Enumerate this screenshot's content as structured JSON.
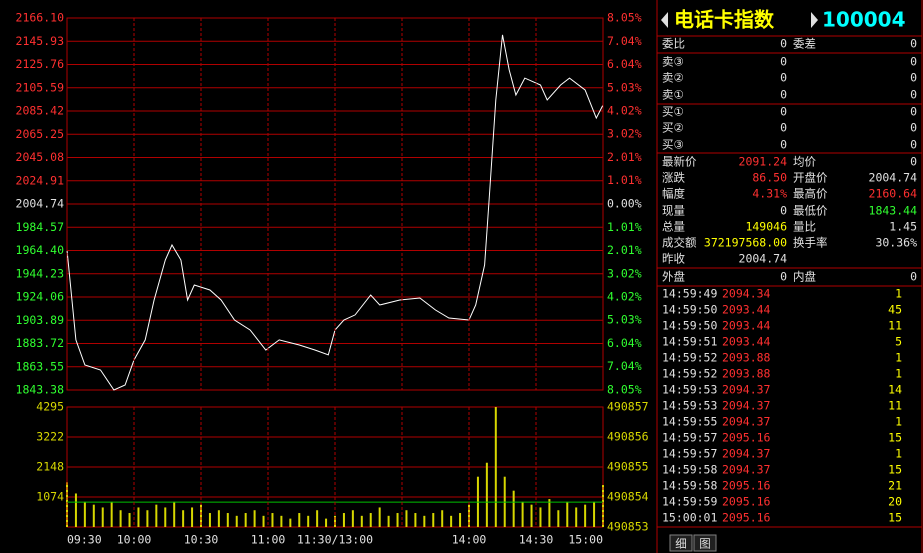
{
  "chart_data": [
    {
      "type": "line",
      "xlim": [
        0,
        240
      ],
      "ylim": [
        1843.38,
        2166.1
      ],
      "yticks": [
        {
          "value": 2166.1,
          "label": "2166.10"
        },
        2145.93,
        2125.76,
        2105.59,
        2085.42,
        2065.25,
        2045.08,
        2024.91,
        2004.74,
        1984.57,
        {
          "value": 1964.4,
          "label": "1964.40"
        },
        1944.23,
        1924.06,
        1903.89,
        1883.72,
        1863.55,
        1843.38
      ],
      "y2lim": [
        -8.05,
        8.05
      ],
      "y2ticks": [
        {
          "value": 8.05,
          "label": "8.05%"
        },
        {
          "value": 7.04,
          "label": "7.04%"
        },
        {
          "value": 6.04,
          "label": "6.04%"
        },
        {
          "value": 5.03,
          "label": "5.03%"
        },
        {
          "value": 4.02,
          "label": "4.02%"
        },
        {
          "value": 3.02,
          "label": "3.02%"
        },
        {
          "value": 2.01,
          "label": "2.01%"
        },
        {
          "value": 1.01,
          "label": "1.01%"
        },
        {
          "value": 0,
          "label": "0.00%"
        },
        {
          "value": -1.01,
          "label": "1.01%"
        },
        {
          "value": -2.01,
          "label": "2.01%"
        },
        {
          "value": -3.02,
          "label": "3.02%"
        },
        {
          "value": -4.02,
          "label": "4.02%"
        },
        {
          "value": -5.03,
          "label": "5.03%"
        },
        {
          "value": -6.04,
          "label": "6.04%"
        },
        {
          "value": -7.04,
          "label": "7.04%"
        },
        {
          "value": -8.05,
          "label": "8.05%"
        }
      ],
      "grid": true,
      "x": [
        0,
        4,
        8,
        15,
        21,
        26,
        30,
        35,
        39,
        44,
        47,
        51,
        54,
        57,
        64,
        69,
        75,
        82,
        89,
        95,
        104,
        111,
        117,
        120,
        124,
        129,
        136,
        140,
        149,
        158,
        165,
        171,
        180,
        183,
        187,
        189,
        192,
        195,
        198,
        201,
        205,
        212,
        215,
        221,
        225,
        232,
        237,
        240
      ],
      "series": [
        {
          "color": "#ffffff",
          "values": [
            1964.8,
            1886.8,
            1865.1,
            1860.7,
            1843.4,
            1847.7,
            1869.4,
            1886.8,
            1921.5,
            1956.2,
            1969.2,
            1956.2,
            1921.5,
            1934.5,
            1930.1,
            1921.5,
            1904.1,
            1895.4,
            1878.1,
            1886.8,
            1882.4,
            1878.1,
            1873.8,
            1895.4,
            1904.1,
            1908.5,
            1925.8,
            1917.1,
            1921.5,
            1923.2,
            1912.8,
            1905.8,
            1904.1,
            1917.1,
            1951.8,
            2008.2,
            2095.0,
            2151.4,
            2121.0,
            2099.3,
            2114.0,
            2108.0,
            2095.0,
            2108.0,
            2114.0,
            2103.6,
            2079.3,
            2090.6
          ]
        }
      ]
    },
    {
      "type": "bar",
      "xlim": [
        0,
        240
      ],
      "xticks": [
        {
          "value": 0,
          "label": "09:30"
        },
        {
          "value": 30,
          "label": "10:00"
        },
        {
          "value": 60,
          "label": "10:30"
        },
        {
          "value": 90,
          "label": "11:00"
        },
        {
          "value": 120,
          "label": "11:30/13:00"
        },
        {
          "value": 150,
          "label": null
        },
        {
          "value": 180,
          "label": "14:00"
        },
        {
          "value": 210,
          "label": "14:30"
        },
        {
          "value": 240,
          "label": "15:00"
        }
      ],
      "ylim": [
        0,
        4295
      ],
      "yticks": [
        4295,
        3222,
        2148,
        1074
      ],
      "y2lim": [
        490853,
        490857
      ],
      "y2ticks": [
        490857,
        490856,
        490855,
        490854,
        490853
      ],
      "grid": true,
      "x": [
        0,
        4,
        8,
        12,
        16,
        20,
        24,
        28,
        32,
        36,
        40,
        44,
        48,
        52,
        56,
        60,
        64,
        68,
        72,
        76,
        80,
        84,
        88,
        92,
        96,
        100,
        104,
        108,
        112,
        116,
        120,
        124,
        128,
        132,
        136,
        140,
        144,
        148,
        152,
        156,
        160,
        164,
        168,
        172,
        176,
        180,
        184,
        188,
        192,
        196,
        200,
        204,
        208,
        212,
        216,
        220,
        224,
        228,
        232,
        236,
        240
      ],
      "series": [
        {
          "color": "#d8d800",
          "values": [
            1600,
            1200,
            900,
            800,
            700,
            900,
            600,
            500,
            700,
            600,
            800,
            700,
            900,
            600,
            700,
            800,
            500,
            600,
            500,
            400,
            500,
            600,
            400,
            500,
            400,
            300,
            500,
            400,
            600,
            300,
            400,
            500,
            600,
            400,
            500,
            700,
            400,
            500,
            600,
            500,
            400,
            500,
            600,
            400,
            500,
            800,
            1800,
            2300,
            4295,
            1800,
            1300,
            900,
            800,
            700,
            1000,
            600,
            900,
            700,
            800,
            900,
            1500
          ]
        },
        {
          "type": "line",
          "axis": "y2",
          "color": "#00c000",
          "x": [
            0,
            240
          ],
          "values": [
            490853.83,
            490853.83
          ]
        }
      ]
    }
  ],
  "quote": {
    "title": "电话卡指数",
    "code": "100004",
    "rows": [
      [
        "委比",
        "0",
        "委差",
        "0"
      ],
      [
        "卖③",
        "0",
        "0"
      ],
      [
        "卖②",
        "0",
        "0"
      ],
      [
        "卖①",
        "0",
        "0"
      ],
      [
        "买①",
        "0",
        "0"
      ],
      [
        "买②",
        "0",
        "0"
      ],
      [
        "买③",
        "0",
        "0"
      ],
      [
        "最新价",
        "2091.24",
        "均价",
        "0"
      ],
      [
        "涨跌",
        "86.50",
        "开盘价",
        "2004.74"
      ],
      [
        "幅度",
        "4.31%",
        "最高价",
        "2160.64"
      ],
      [
        "现量",
        "0",
        "最低价",
        "1843.44"
      ],
      [
        "总量",
        "149046",
        "量比",
        "1.45"
      ],
      [
        "成交额",
        "372197568.00",
        "换手率",
        "30.36%"
      ],
      [
        "昨收",
        "2004.74"
      ],
      [
        "外盘",
        "0",
        "内盘",
        "0"
      ]
    ],
    "trades": [
      [
        "14:59:49",
        "2094.34",
        "1"
      ],
      [
        "14:59:50",
        "2093.44",
        "45"
      ],
      [
        "14:59:50",
        "2093.44",
        "11"
      ],
      [
        "14:59:51",
        "2093.44",
        "5"
      ],
      [
        "14:59:52",
        "2093.88",
        "1"
      ],
      [
        "14:59:52",
        "2093.88",
        "1"
      ],
      [
        "14:59:53",
        "2094.37",
        "14"
      ],
      [
        "14:59:53",
        "2094.37",
        "11"
      ],
      [
        "14:59:55",
        "2094.37",
        "1"
      ],
      [
        "14:59:57",
        "2095.16",
        "15"
      ],
      [
        "14:59:57",
        "2094.37",
        "1"
      ],
      [
        "14:59:58",
        "2094.37",
        "15"
      ],
      [
        "14:59:58",
        "2095.16",
        "21"
      ],
      [
        "14:59:59",
        "2095.16",
        "20"
      ],
      [
        "15:00:01",
        "2095.16",
        "15"
      ]
    ],
    "tabs": [
      "细",
      "图"
    ]
  }
}
